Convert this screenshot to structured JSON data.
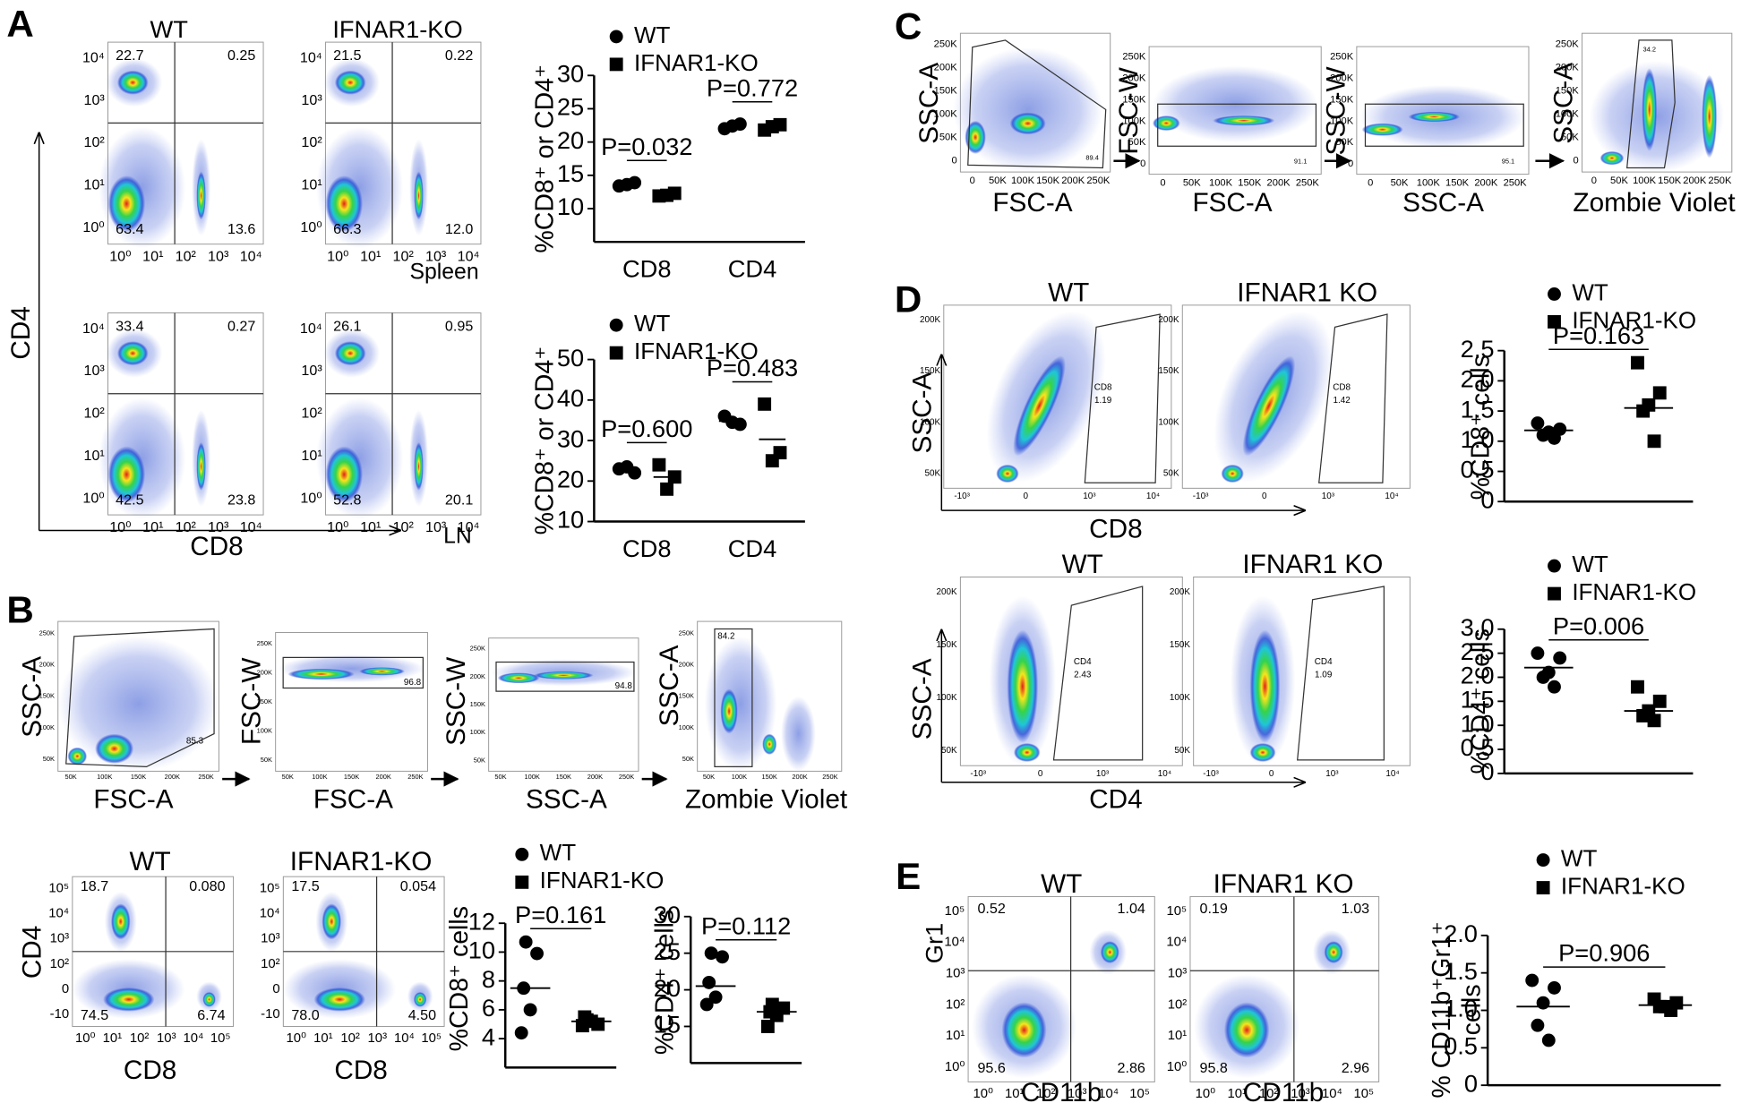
{
  "panel_labels": [
    "A",
    "B",
    "C",
    "D",
    "E"
  ],
  "panel_A": {
    "titles": [
      "WT",
      "IFNAR1-KO"
    ],
    "plots": [
      [
        "22.7",
        "0.25",
        "63.4",
        "13.6"
      ],
      [
        "21.5",
        "0.22",
        "66.3",
        "12.0"
      ],
      [
        "33.4",
        "0.27",
        "42.5",
        "23.8"
      ],
      [
        "26.1",
        "0.95",
        "52.8",
        "20.1"
      ]
    ],
    "ticks": [
      "10⁰",
      "10¹",
      "10²",
      "10³",
      "10⁴"
    ],
    "y_label": "CD4",
    "x_label": "CD8",
    "tissues": [
      "Spleen",
      "LN"
    ]
  },
  "panel_B": {
    "gating": [
      {
        "x_label": "FSC-A",
        "y_label": "SSC-A",
        "gate": "85.3"
      },
      {
        "x_label": "FSC-A",
        "y_label": "FSC-W",
        "gate": "96.8"
      },
      {
        "x_label": "SSC-A",
        "y_label": "SSC-W",
        "gate": "94.8"
      },
      {
        "x_label": "Zombie Violet",
        "y_label": "SSC-A",
        "gate": "84.2"
      }
    ],
    "gating_ticks": [
      "50K",
      "100K",
      "150K",
      "200K",
      "250K"
    ],
    "titles": [
      "WT",
      "IFNAR1-KO"
    ],
    "plots": [
      [
        "18.7",
        "0.080",
        "74.5",
        "6.74"
      ],
      [
        "17.5",
        "0.054",
        "78.0",
        "4.50"
      ]
    ],
    "x_ticks": [
      "10⁰",
      "10¹",
      "10²",
      "10³",
      "10⁴",
      "10⁵"
    ],
    "y_ticks": [
      "-10",
      "0",
      "10²",
      "10³",
      "10⁴",
      "10⁵"
    ],
    "y_label": "CD4",
    "x_label": "CD8"
  },
  "panel_C": {
    "gating": [
      {
        "x_label": "FSC-A",
        "y_label": "SSC-A",
        "gate": "89.4"
      },
      {
        "x_label": "FSC-A",
        "y_label": "FSC-W",
        "gate": "91.1"
      },
      {
        "x_label": "SSC-A",
        "y_label": "SSC-W",
        "gate": "95.1"
      },
      {
        "x_label": "Zombie Violet",
        "y_label": "SSC-A",
        "gate": "34.2"
      }
    ],
    "ticks": [
      "0",
      "50K",
      "100K",
      "150K",
      "200K",
      "250K"
    ]
  },
  "panel_D": {
    "rows": [
      {
        "titles": [
          "WT",
          "IFNAR1 KO"
        ],
        "gates": [
          [
            "CD8",
            "1.19"
          ],
          [
            "CD8",
            "1.42"
          ]
        ],
        "x_label": "CD8"
      },
      {
        "titles": [
          "WT",
          "IFNAR1 KO"
        ],
        "gates": [
          [
            "CD4",
            "2.43"
          ],
          [
            "CD4",
            "1.09"
          ]
        ],
        "x_label": "CD4"
      }
    ],
    "y_label": "SSC-A",
    "y_ticks": [
      "50K",
      "100K",
      "150K",
      "200K"
    ],
    "x_ticks": [
      "-10³",
      "0",
      "10³",
      "10⁴"
    ]
  },
  "panel_E": {
    "titles": [
      "WT",
      "IFNAR1 KO"
    ],
    "plots": [
      [
        "0.52",
        "1.04",
        "95.6",
        "2.86"
      ],
      [
        "0.19",
        "1.03",
        "95.8",
        "2.96"
      ]
    ],
    "ticks": [
      "10⁰",
      "10¹",
      "10²",
      "10³",
      "10⁴",
      "10⁵"
    ],
    "y_label": "Gr1",
    "x_label": "CD11b"
  },
  "chart_data": [
    {
      "type": "strip",
      "y_label": "%CD8⁺ or CD4⁺",
      "categories": [
        "CD8",
        "CD4"
      ],
      "ylim": [
        5,
        30
      ],
      "yticks": [
        10,
        15,
        20,
        25,
        30
      ],
      "series": [
        {
          "name": "WT",
          "marker": "circle",
          "color": "#000000",
          "values": [
            [
              13.4,
              13.9,
              13.6
            ],
            [
              22.0,
              22.7,
              22.4
            ]
          ],
          "means": [
            13.6,
            22.4
          ]
        },
        {
          "name": "IFNAR1-KO",
          "marker": "square",
          "color": "#000000",
          "values": [
            [
              11.9,
              12.3,
              12.0
            ],
            [
              21.8,
              22.6,
              22.3
            ]
          ],
          "means": [
            12.1,
            22.2
          ]
        }
      ],
      "annotations": [
        "P=0.032",
        "P=0.772"
      ]
    },
    {
      "type": "strip",
      "y_label": "%CD8⁺ or CD4⁺",
      "categories": [
        "CD8",
        "CD4"
      ],
      "ylim": [
        10,
        50
      ],
      "yticks": [
        10,
        20,
        30,
        40,
        50
      ],
      "series": [
        {
          "name": "WT",
          "marker": "circle",
          "color": "#000000",
          "values": [
            [
              23,
              22,
              23.5
            ],
            [
              36,
              34,
              34.5
            ]
          ],
          "means": [
            22.8,
            34.8
          ]
        },
        {
          "name": "IFNAR1-KO",
          "marker": "square",
          "color": "#000000",
          "values": [
            [
              24,
              21,
              18
            ],
            [
              39,
              27,
              25
            ]
          ],
          "means": [
            21,
            30.3
          ]
        }
      ],
      "annotations": [
        "P=0.600",
        "P=0.483"
      ]
    },
    {
      "type": "strip",
      "y_label": "%CD8⁺ cells",
      "ylim": [
        2,
        12
      ],
      "yticks": [
        4,
        6,
        8,
        10,
        12
      ],
      "series": [
        {
          "name": "WT",
          "marker": "circle",
          "color": "#000000",
          "values": [
            10.7,
            9.9,
            7.5,
            6.0,
            4.4
          ],
          "mean": 7.5
        },
        {
          "name": "IFNAR1-KO",
          "marker": "square",
          "color": "#000000",
          "values": [
            5.3,
            5.0,
            5.5,
            5.2,
            4.9
          ],
          "mean": 5.2
        }
      ],
      "annotations": [
        "P=0.161"
      ]
    },
    {
      "type": "strip",
      "y_label": "%CD4⁺ cells",
      "ylim": [
        10,
        30
      ],
      "yticks": [
        15,
        20,
        25,
        30
      ],
      "series": [
        {
          "marker": "circle",
          "color": "#000000",
          "values": [
            25,
            24.5,
            21,
            19,
            18
          ],
          "mean": 20.5
        },
        {
          "marker": "square",
          "color": "#000000",
          "values": [
            18,
            17.5,
            17,
            16.5,
            15
          ],
          "mean": 17
        }
      ],
      "annotations": [
        "P=0.112"
      ]
    },
    {
      "type": "strip",
      "y_label": "%CD8⁺ cells",
      "ylim": [
        0,
        2.5
      ],
      "yticks": [
        0,
        0.5,
        {
          "value": 1,
          "label": "1.0"
        },
        1.5,
        {
          "value": 2,
          "label": "2.0"
        },
        2.5
      ],
      "series": [
        {
          "name": "WT",
          "marker": "circle",
          "color": "#000000",
          "values": [
            1.3,
            1.2,
            1.15,
            1.1,
            1.05
          ],
          "mean": 1.18
        },
        {
          "name": "IFNAR1-KO",
          "marker": "square",
          "color": "#000000",
          "values": [
            2.3,
            1.8,
            1.6,
            1.5,
            1.0
          ],
          "mean": 1.55
        }
      ],
      "annotations": [
        "P=0.163"
      ]
    },
    {
      "type": "strip",
      "y_label": "%CD4⁺ cells",
      "ylim": [
        0,
        3
      ],
      "yticks": [
        0,
        0.5,
        {
          "value": 1,
          "label": "1.0"
        },
        1.5,
        {
          "value": 2,
          "label": "2.0"
        },
        2.5,
        {
          "value": 3,
          "label": "3.0"
        }
      ],
      "series": [
        {
          "name": "WT",
          "marker": "circle",
          "color": "#000000",
          "values": [
            2.5,
            2.4,
            2.1,
            2.0,
            1.8
          ],
          "mean": 2.2
        },
        {
          "name": "IFNAR1-KO",
          "marker": "square",
          "color": "#000000",
          "values": [
            1.8,
            1.5,
            1.3,
            1.2,
            1.1
          ],
          "mean": 1.3
        }
      ],
      "annotations": [
        "P=0.006"
      ]
    },
    {
      "type": "strip",
      "y_label": [
        "% CD11b⁺Gr1⁺",
        "cells"
      ],
      "ylim": [
        0,
        2
      ],
      "yticks": [
        0,
        0.5,
        {
          "value": 1,
          "label": "1.0"
        },
        1.5,
        {
          "value": 2,
          "label": "2.0"
        }
      ],
      "series": [
        {
          "name": "WT",
          "marker": "circle",
          "color": "#000000",
          "values": [
            1.4,
            1.3,
            1.1,
            0.8,
            0.6
          ],
          "mean": 1.05
        },
        {
          "name": "IFNAR1-KO",
          "marker": "square",
          "color": "#000000",
          "values": [
            1.15,
            1.1,
            1.05,
            1.05,
            1.0
          ],
          "mean": 1.07
        }
      ],
      "annotations": [
        "P=0.906"
      ]
    }
  ]
}
